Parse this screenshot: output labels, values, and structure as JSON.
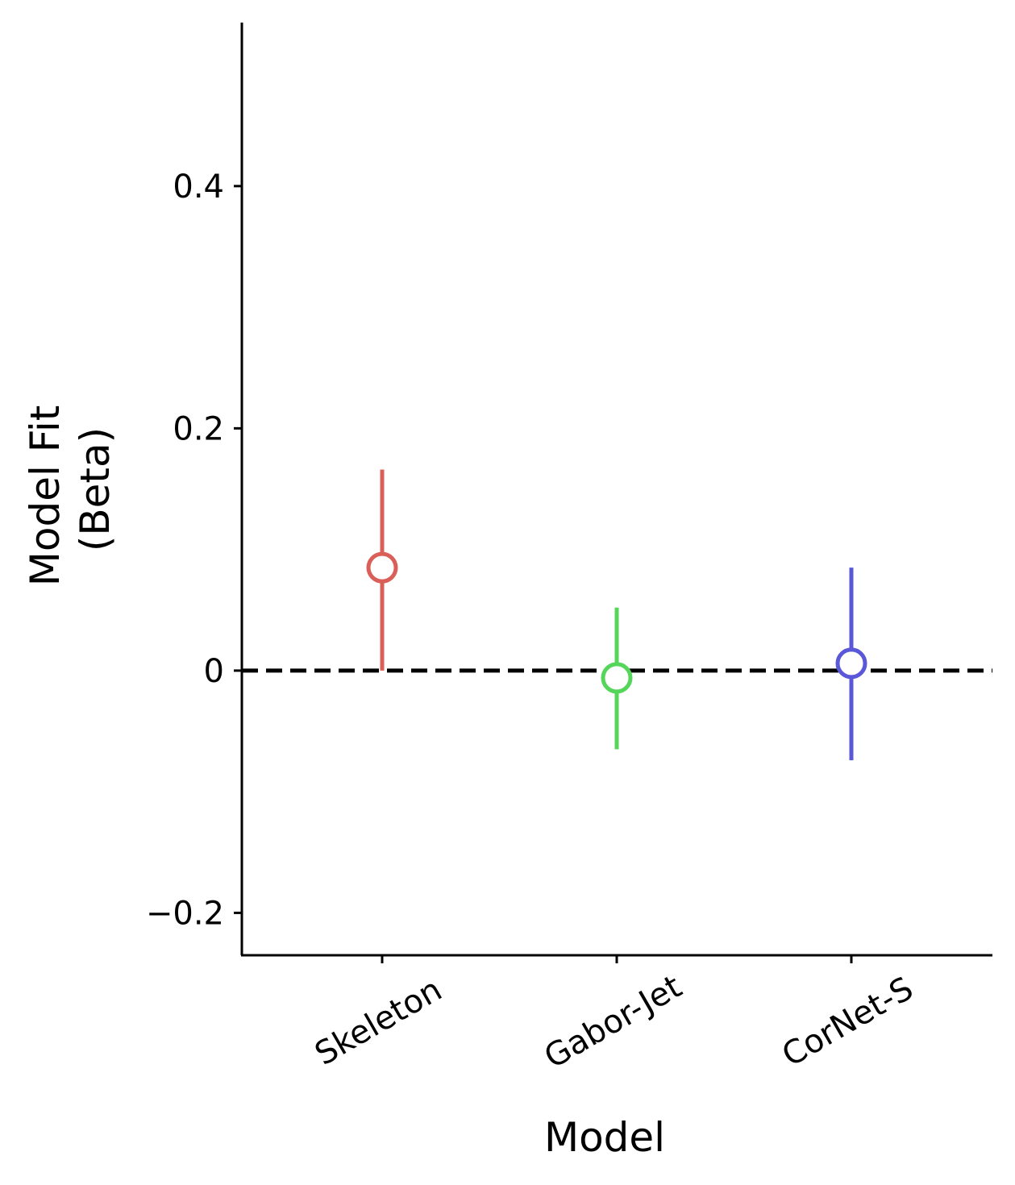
{
  "chart_data": {
    "type": "scatter",
    "title": "",
    "xlabel": "Model",
    "ylabel_lines": [
      "Model Fit",
      "(Beta)"
    ],
    "categories": [
      "Skeleton",
      "Gabor-Jet",
      "CorNet-S"
    ],
    "points": [
      {
        "category": "Skeleton",
        "value": 0.085,
        "ci_low": 0.0,
        "ci_high": 0.166,
        "color": "#d95f58"
      },
      {
        "category": "Gabor-Jet",
        "value": -0.006,
        "ci_low": -0.065,
        "ci_high": 0.052,
        "color": "#55d65a"
      },
      {
        "category": "CorNet-S",
        "value": 0.006,
        "ci_low": -0.074,
        "ci_high": 0.085,
        "color": "#5b57d9"
      }
    ],
    "ylim": [
      -0.235,
      0.535
    ],
    "yticks": [
      {
        "value": -0.2,
        "label": "−0.2"
      },
      {
        "value": 0,
        "label": "0"
      },
      {
        "value": 0.2,
        "label": "0.2"
      },
      {
        "value": 0.4,
        "label": "0.4"
      }
    ],
    "reference_line": {
      "value": 0,
      "style": "dashed",
      "color": "#000000"
    },
    "grid": false,
    "legend": "none"
  }
}
